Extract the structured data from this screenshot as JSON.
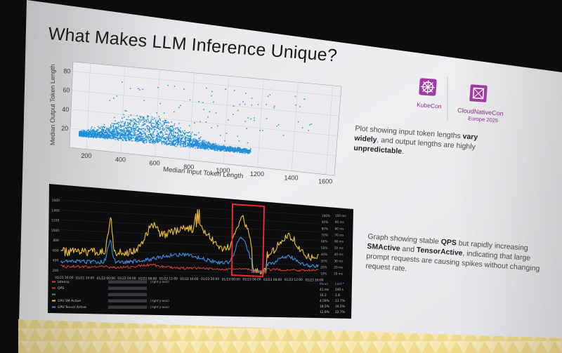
{
  "slide": {
    "title": "What Makes LLM Inference Unique?",
    "colors": {
      "slide_bg": "#ececef",
      "accent_yellow": "#f2c84a",
      "accent_purple": "#a33aa3",
      "dark_panel": "#0d0d10"
    }
  },
  "logos": {
    "kubecon": "KubeCon",
    "cloudnativecon": "CloudNativeCon",
    "event": "Europe 2025",
    "icons": [
      "kubecon-helm-icon",
      "cncf-icon"
    ]
  },
  "scatter": {
    "ylabel": "Median Output Token Length",
    "xlabel": "Median Input Token Length",
    "y_ticks": [
      "80",
      "60",
      "40",
      "20"
    ],
    "x_ticks": [
      "200",
      "400",
      "600",
      "800",
      "1000",
      "1200",
      "1400",
      "1600"
    ],
    "color": "#1f8fd6"
  },
  "desc1": {
    "p1": "Plot showing input token lengths ",
    "b1": "vary widely",
    "p2": ", and output lengths are highly ",
    "b2": "unpredictable",
    "p3": "."
  },
  "desc2": {
    "p1": "Graph showing stable ",
    "b1": "QPS",
    "p2": " but rapidly increasing ",
    "b2": "SMActive",
    "p3": " and ",
    "b3": "TensorActive",
    "p4": ", indicating that large prompt requests are causing spikes without changing request rate."
  },
  "grafana": {
    "y_ticks": [
      "1600",
      "1400",
      "1200",
      "1000",
      "800",
      "600",
      "400",
      "200"
    ],
    "right_ticks": [
      "100%",
      "90%",
      "80%",
      "70%",
      "60%",
      "50%",
      "40%",
      "30%",
      "20%",
      "10%"
    ],
    "right_ticks2": [
      "100 ms",
      "90 ms",
      "80 ms",
      "70 ms",
      "60 ms",
      "50 ms",
      "40 ms",
      "30 ms",
      "20 ms",
      "10 ms"
    ],
    "x_ticks": [
      "01/21 16:00",
      "01/21 20:00",
      "01/22 00:00",
      "01/22 04:00",
      "01/22 08:00",
      "01/22 12:00",
      "01/22 16:00",
      "01/22 20:00",
      "01/23 00:00",
      "01/23 04:00",
      "01/23 08:00",
      "01/23 12:00",
      "01/23 16:00"
    ],
    "legend": [
      {
        "label": "latency",
        "suffix": "(right y-axis)",
        "color": "#d63b3b"
      },
      {
        "label": "QPS",
        "suffix": "",
        "color": "#e03030"
      },
      {
        "label": "",
        "suffix": "",
        "color": "#3aa04a"
      },
      {
        "label": "GPU SM Active",
        "suffix": "(right y-axis)",
        "color": "#f2c230"
      },
      {
        "label": "GPU Tensor Active",
        "suffix": "(right y-axis)",
        "color": "#3b8fe0"
      }
    ],
    "stats_header": [
      "Mean",
      "Last *"
    ],
    "stats": [
      [
        "41 ms",
        "240 s"
      ],
      [
        "10.3",
        "1.8"
      ],
      [
        "4.59%",
        "13.7%"
      ],
      [
        "18.5%",
        "34.5%"
      ],
      [
        "12.6%",
        "22.7%"
      ]
    ],
    "colors": {
      "sm": "#f2c230",
      "tensor": "#3b8fe0",
      "latency": "#e8462e",
      "highlight": "#e82c2c"
    }
  }
}
